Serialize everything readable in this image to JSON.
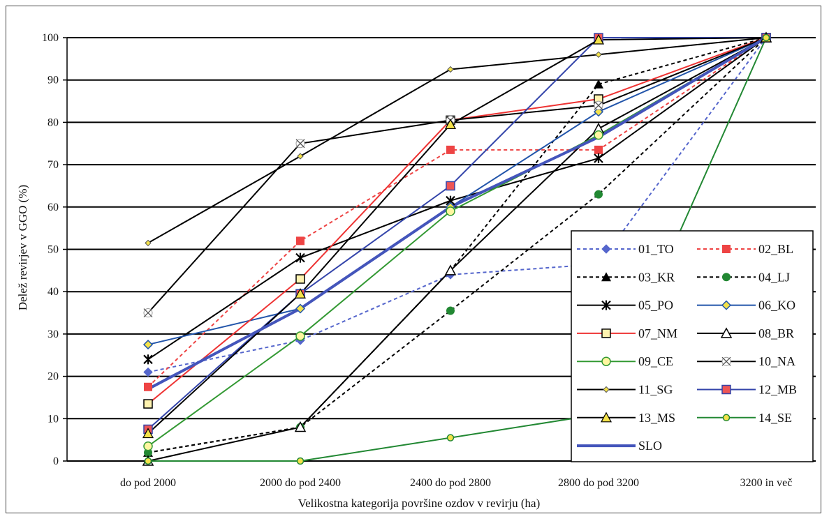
{
  "chart_data": {
    "type": "line",
    "title": "",
    "xlabel": "Velikostna kategorija površine ozdov v revirju (ha)",
    "ylabel": "Delež revirjev v GGO (%)",
    "categories": [
      "do pod 2000",
      "2000 do pod 2400",
      "2400 do pod 2800",
      "2800 do pod 3200",
      "3200 in več"
    ],
    "ylim": [
      0,
      100
    ],
    "yticks": [
      0,
      10,
      20,
      30,
      40,
      50,
      60,
      70,
      80,
      90,
      100
    ],
    "grid": "horizontal",
    "legend_position": "bottom-right",
    "series": [
      {
        "name": "01_TO",
        "values": [
          21,
          28.5,
          44,
          46.5,
          100
        ],
        "color": "#5566cc",
        "dash": "dotted",
        "marker": "diamond"
      },
      {
        "name": "02_BL",
        "values": [
          17.5,
          52,
          73.5,
          73.5,
          100
        ],
        "color": "#ee4444",
        "dash": "dotted",
        "marker": "square"
      },
      {
        "name": "03_KR",
        "values": [
          2,
          8,
          45,
          89,
          100
        ],
        "color": "#000000",
        "dash": "dotted",
        "marker": "triangle"
      },
      {
        "name": "04_LJ",
        "values": [
          2,
          8,
          35.5,
          63,
          100
        ],
        "color": "#000000",
        "dash": "dotted",
        "marker": "circle"
      },
      {
        "name": "05_PO",
        "values": [
          24,
          48,
          61.5,
          71.5,
          100
        ],
        "color": "#000000",
        "dash": "solid",
        "marker": "star"
      },
      {
        "name": "06_KO",
        "values": [
          27.5,
          36,
          60,
          82.5,
          100
        ],
        "color": "#2255aa",
        "dash": "solid",
        "marker": "diamond-yellow"
      },
      {
        "name": "07_NM",
        "values": [
          13.5,
          43,
          80.5,
          85.5,
          100
        ],
        "color": "#ee3333",
        "dash": "solid",
        "marker": "square-yellow"
      },
      {
        "name": "08_BR",
        "values": [
          0,
          8,
          45,
          78.5,
          100
        ],
        "color": "#000000",
        "dash": "solid",
        "marker": "triangle-open"
      },
      {
        "name": "09_CE",
        "values": [
          3.5,
          29.5,
          59,
          77,
          100
        ],
        "color": "#339933",
        "dash": "solid",
        "marker": "circle-yellow"
      },
      {
        "name": "10_NA",
        "values": [
          35,
          75,
          80.5,
          84,
          100
        ],
        "color": "#000000",
        "dash": "solid",
        "marker": "star-open"
      },
      {
        "name": "11_SG",
        "values": [
          51.5,
          72,
          92.5,
          96,
          100
        ],
        "color": "#000000",
        "dash": "solid",
        "marker": "diamond-small"
      },
      {
        "name": "12_MB",
        "values": [
          7.5,
          39.5,
          65,
          100,
          100
        ],
        "color": "#3344aa",
        "dash": "solid",
        "marker": "square-red"
      },
      {
        "name": "13_MS",
        "values": [
          6.5,
          39.5,
          79.5,
          99.5,
          100
        ],
        "color": "#000000",
        "dash": "solid",
        "marker": "triangle-yellow"
      },
      {
        "name": "14_SE",
        "values": [
          0,
          0,
          5.5,
          11,
          100
        ],
        "color": "#228833",
        "dash": "solid",
        "marker": "circle-yellow-small"
      },
      {
        "name": "SLO",
        "values": [
          17,
          36,
          60,
          76.5,
          100
        ],
        "color": "#4455bb",
        "dash": "solid",
        "marker": "none",
        "thick": true
      }
    ]
  }
}
